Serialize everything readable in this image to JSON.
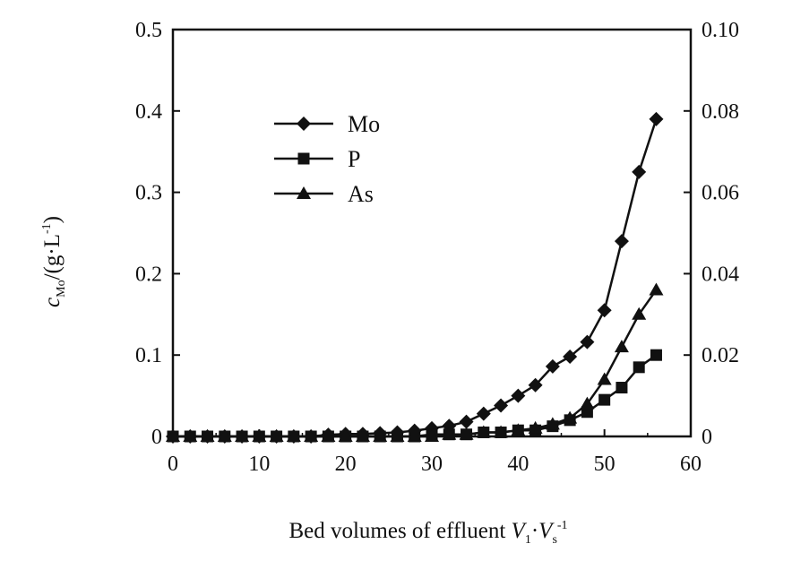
{
  "chart_data": {
    "type": "line",
    "title": "",
    "xlabel": {
      "main": "Bed volumes of effluent ",
      "v1": "V",
      "v1_sub": "1",
      "dot": "·",
      "vs": "V",
      "vs_sub": "s",
      "exp": "-1"
    },
    "ylabel_left": {
      "c": "c",
      "sub": "Mo",
      "rest": "/(g·L",
      "exp": "-1",
      "close": ")"
    },
    "xlim": [
      0,
      60
    ],
    "ylim_left": [
      0,
      0.5
    ],
    "ylim_right": [
      0,
      0.1
    ],
    "x_ticks": [
      "0",
      "10",
      "20",
      "30",
      "40",
      "50",
      "60"
    ],
    "y_left_ticks": [
      "0",
      "0.1",
      "0.2",
      "0.3",
      "0.4",
      "0.5"
    ],
    "y_right_ticks": [
      "0",
      "0.02",
      "0.04",
      "0.06",
      "0.08",
      "0.10"
    ],
    "legend_position": "top-left",
    "grid": false,
    "series": [
      {
        "name": "Mo",
        "marker": "diamond",
        "axis": "left",
        "x": [
          0,
          2,
          4,
          6,
          8,
          10,
          12,
          14,
          16,
          18,
          20,
          22,
          24,
          26,
          28,
          30,
          32,
          34,
          36,
          38,
          40,
          42,
          44,
          46,
          48,
          50,
          52,
          54,
          56
        ],
        "y": [
          0,
          0,
          0,
          0,
          0,
          0,
          0,
          0,
          0,
          0.002,
          0.003,
          0.003,
          0.004,
          0.005,
          0.007,
          0.01,
          0.013,
          0.018,
          0.028,
          0.038,
          0.05,
          0.063,
          0.086,
          0.098,
          0.116,
          0.155,
          0.24,
          0.325,
          0.39
        ]
      },
      {
        "name": "P",
        "marker": "square",
        "axis": "right",
        "x": [
          0,
          2,
          4,
          6,
          8,
          10,
          12,
          14,
          16,
          18,
          20,
          22,
          24,
          26,
          28,
          30,
          32,
          34,
          36,
          38,
          40,
          42,
          44,
          46,
          48,
          50,
          52,
          54,
          56
        ],
        "y": [
          0,
          0,
          0,
          0,
          0,
          0,
          0,
          0,
          0,
          0,
          0,
          0,
          0,
          0,
          0,
          0.0005,
          0.0005,
          0.0005,
          0.001,
          0.001,
          0.0015,
          0.0015,
          0.0025,
          0.004,
          0.006,
          0.009,
          0.012,
          0.017,
          0.02
        ]
      },
      {
        "name": "As",
        "marker": "triangle",
        "axis": "right",
        "x": [
          0,
          2,
          4,
          6,
          8,
          10,
          12,
          14,
          16,
          18,
          20,
          22,
          24,
          26,
          28,
          30,
          32,
          34,
          36,
          38,
          40,
          42,
          44,
          46,
          48,
          50,
          52,
          54,
          56
        ],
        "y": [
          0,
          0,
          0,
          0,
          0,
          0,
          0,
          0,
          0,
          0,
          0,
          0,
          0,
          0,
          0,
          0,
          0.0005,
          0.0005,
          0.001,
          0.001,
          0.0015,
          0.002,
          0.003,
          0.0045,
          0.008,
          0.014,
          0.022,
          0.03,
          0.036
        ]
      }
    ]
  }
}
